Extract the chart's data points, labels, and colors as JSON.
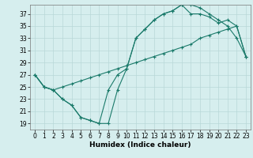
{
  "title": "",
  "xlabel": "Humidex (Indice chaleur)",
  "bg_color": "#d6eeee",
  "grid_color": "#b8d8d8",
  "line_color": "#1a7a6a",
  "xlim": [
    -0.5,
    23.5
  ],
  "ylim": [
    18,
    38.5
  ],
  "xticks": [
    0,
    1,
    2,
    3,
    4,
    5,
    6,
    7,
    8,
    9,
    10,
    11,
    12,
    13,
    14,
    15,
    16,
    17,
    18,
    19,
    20,
    21,
    22,
    23
  ],
  "yticks": [
    19,
    21,
    23,
    25,
    27,
    29,
    31,
    33,
    35,
    37
  ],
  "line1_x": [
    0,
    1,
    2,
    3,
    4,
    5,
    6,
    7,
    8,
    9,
    10,
    11,
    12,
    13,
    14,
    15,
    16,
    17,
    18,
    19,
    20,
    21,
    22,
    23
  ],
  "line1_y": [
    27,
    25,
    24.5,
    23,
    22,
    20,
    19.5,
    19,
    19,
    24.5,
    28,
    33,
    34.5,
    36,
    37,
    37.5,
    38.5,
    38.5,
    38,
    37,
    36,
    35,
    33,
    30
  ],
  "line2_x": [
    0,
    1,
    2,
    3,
    4,
    5,
    6,
    7,
    8,
    9,
    10,
    11,
    12,
    13,
    14,
    15,
    16,
    17,
    18,
    19,
    20,
    21,
    22,
    23
  ],
  "line2_y": [
    27,
    25,
    24.5,
    23,
    22,
    20,
    19.5,
    19,
    24.5,
    27,
    28,
    33,
    34.5,
    36,
    37,
    37.5,
    38.5,
    37,
    37,
    36.5,
    35.5,
    36,
    35,
    30
  ],
  "line3_x": [
    0,
    1,
    2,
    3,
    4,
    5,
    6,
    7,
    8,
    9,
    10,
    11,
    12,
    13,
    14,
    15,
    16,
    17,
    18,
    19,
    20,
    21,
    22,
    23
  ],
  "line3_y": [
    27,
    25,
    24.5,
    25,
    25.5,
    26,
    26.5,
    27,
    27.5,
    28,
    28.5,
    29,
    29.5,
    30,
    30.5,
    31,
    31.5,
    32,
    33,
    33.5,
    34,
    34.5,
    35,
    30
  ]
}
